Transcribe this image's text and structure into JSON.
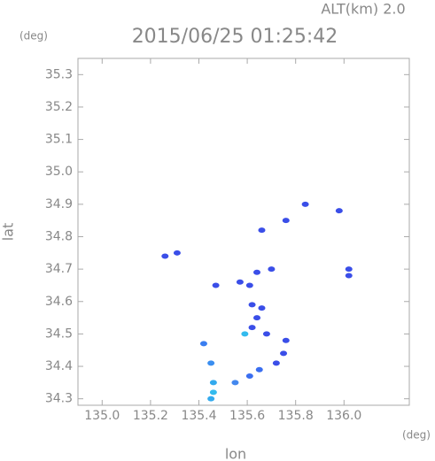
{
  "chart_data": {
    "type": "scatter",
    "title": "2015/06/25 01:25:42",
    "altitude_label": "ALT(km) 2.0",
    "y_unit": "(deg)",
    "x_unit": "(deg)",
    "xlabel": "lon",
    "ylabel": "lat",
    "xlim": [
      134.9,
      136.27
    ],
    "ylim": [
      34.28,
      35.35
    ],
    "xticks": [
      {
        "value": 135,
        "label": "135.0"
      },
      135.2,
      135.4,
      135.6,
      135.8,
      {
        "value": 136,
        "label": "136.0"
      }
    ],
    "yticks": [
      {
        "value": 34.3,
        "label": "34.3"
      },
      34.4,
      34.5,
      34.6,
      34.7,
      34.8,
      34.9,
      {
        "value": 35,
        "label": "35.0"
      },
      35.1,
      35.2,
      35.3
    ],
    "x": [
      135.31,
      135.26,
      135.84,
      135.98,
      135.76,
      135.66,
      136.02,
      136.02,
      135.7,
      135.64,
      135.57,
      135.61,
      135.47,
      135.62,
      135.64,
      135.68,
      135.62,
      135.66,
      135.76,
      135.75,
      135.72,
      135.42,
      135.45,
      135.46,
      135.46,
      135.45,
      135.55,
      135.65,
      135.61,
      135.59
    ],
    "values": [
      34.75,
      34.74,
      34.9,
      34.88,
      34.85,
      34.82,
      34.7,
      34.68,
      34.7,
      34.69,
      34.66,
      34.65,
      34.65,
      34.59,
      34.55,
      34.5,
      34.52,
      34.58,
      34.48,
      34.44,
      34.41,
      34.47,
      34.41,
      34.35,
      34.32,
      34.3,
      34.35,
      34.39,
      34.37,
      34.5
    ],
    "colors": [
      "#3a4ee8",
      "#3a4ee8",
      "#3a4ee8",
      "#3a4ee8",
      "#3a4ee8",
      "#3a4ee8",
      "#3a4ee8",
      "#3a4ee8",
      "#3a4ee8",
      "#3a4ee8",
      "#3a4ee8",
      "#3a4ee8",
      "#3a4ee8",
      "#3a4ee8",
      "#3a4ee8",
      "#3a4ee8",
      "#3a4ee8",
      "#3a4ee8",
      "#3a4ee8",
      "#3a4ee8",
      "#3a4ee8",
      "#3a7ef0",
      "#3a8ef0",
      "#33aaee",
      "#33bbee",
      "#33aaee",
      "#4488ee",
      "#3a6ef0",
      "#3a6ef0",
      "#33bbee"
    ]
  }
}
